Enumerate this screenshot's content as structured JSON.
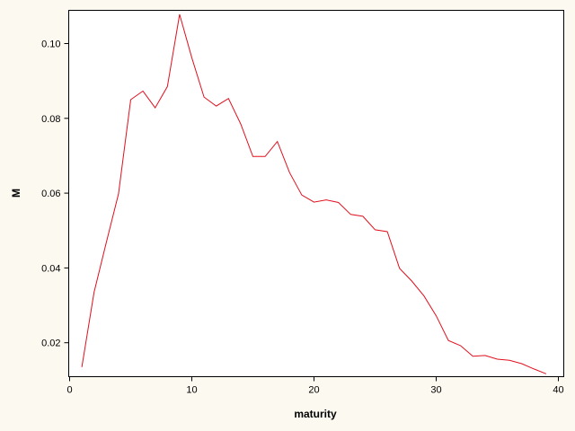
{
  "colors": {
    "page_background": "#fcf9f0",
    "plot_background": "#ffffff",
    "series_line": "#e0101e",
    "axis": "#000000"
  },
  "chart_data": {
    "type": "line",
    "title": "",
    "xlabel": "maturity",
    "ylabel": "M",
    "xlim": [
      0,
      40
    ],
    "ylim": [
      0.011,
      0.109
    ],
    "x_ticks": [
      0,
      10,
      20,
      30,
      40
    ],
    "x_tick_labels": [
      "0",
      "10",
      "20",
      "30",
      "40"
    ],
    "y_ticks": [
      0.02,
      0.04,
      0.06,
      0.08,
      0.1
    ],
    "y_tick_labels": [
      "0.02",
      "0.04",
      "0.06",
      "0.08",
      "0.10"
    ],
    "grid": false,
    "legend": "none",
    "series": [
      {
        "color": "#e0101e",
        "x": [
          1,
          2,
          3,
          4,
          5,
          6,
          7,
          8,
          9,
          10,
          11,
          12,
          13,
          14,
          15,
          16,
          17,
          18,
          19,
          20,
          21,
          22,
          23,
          24,
          25,
          26,
          27,
          28,
          29,
          30,
          31,
          32,
          33,
          34,
          35,
          36,
          37,
          38,
          39
        ],
        "values": [
          0.0135,
          0.0335,
          0.0468,
          0.0598,
          0.085,
          0.0873,
          0.0828,
          0.0885,
          0.1078,
          0.0962,
          0.0857,
          0.0833,
          0.0853,
          0.0785,
          0.0698,
          0.0698,
          0.0738,
          0.0655,
          0.0595,
          0.0576,
          0.0582,
          0.0575,
          0.0543,
          0.0538,
          0.0502,
          0.0497,
          0.0399,
          0.0365,
          0.0325,
          0.0272,
          0.0206,
          0.0192,
          0.0164,
          0.0166,
          0.0156,
          0.0153,
          0.0144,
          0.013,
          0.0117
        ]
      }
    ]
  }
}
